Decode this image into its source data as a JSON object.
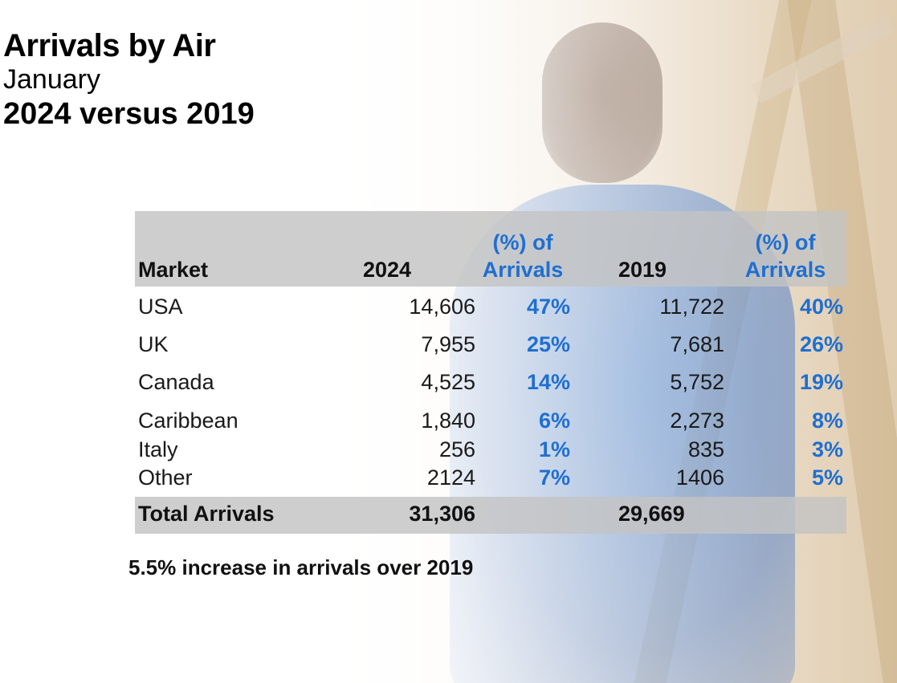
{
  "title": "Arrivals by Air",
  "month": "January",
  "comparison": "2024 versus 2019",
  "table": {
    "headers": {
      "market": "Market",
      "y2024": "2024",
      "pct1_line1": "(%) of",
      "pct1_line2": "Arrivals",
      "y2019": "2019",
      "pct2_line1": "(%) of",
      "pct2_line2": "Arrivals"
    },
    "rows": [
      {
        "market": "USA",
        "v2024": "14,606",
        "p2024": "47%",
        "v2019": "11,722",
        "p2019": "40%"
      },
      {
        "market": "UK",
        "v2024": "7,955",
        "p2024": "25%",
        "v2019": "7,681",
        "p2019": "26%"
      },
      {
        "market": "Canada",
        "v2024": "4,525",
        "p2024": "14%",
        "v2019": "5,752",
        "p2019": "19%"
      },
      {
        "market": "Caribbean",
        "v2024": "1,840",
        "p2024": "6%",
        "v2019": "2,273",
        "p2019": "8%"
      },
      {
        "market": "Italy",
        "v2024": "256",
        "p2024": "1%",
        "v2019": "835",
        "p2019": "3%"
      },
      {
        "market": "Other",
        "v2024": "2124",
        "p2024": "7%",
        "v2019": "1406",
        "p2019": "5%"
      }
    ],
    "total": {
      "label": "Total Arrivals",
      "v2024": "31,306",
      "v2019": "29,669"
    }
  },
  "footnote": "5.5% increase in arrivals over 2019",
  "colors": {
    "accent_blue": "#1f6fd0",
    "header_gray": "#c3c3c3"
  }
}
